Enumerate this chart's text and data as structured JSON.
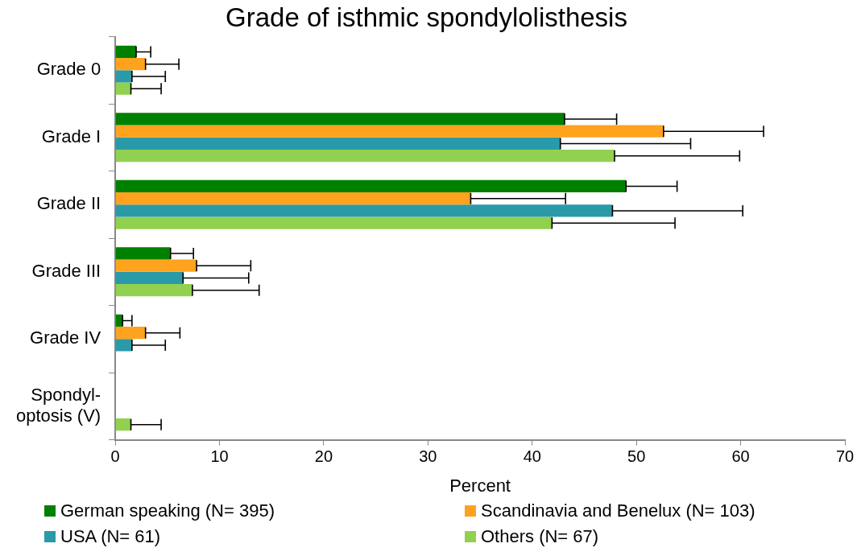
{
  "chart_data": {
    "type": "bar",
    "orientation": "horizontal",
    "title": "Grade of isthmic spondylolisthesis",
    "xlabel": "Percent",
    "categories": [
      "Grade 0",
      "Grade I",
      "Grade II",
      "Grade III",
      "Grade IV",
      "Spondyl-\noptosis (V)"
    ],
    "series": [
      {
        "name": "German speaking (N= 395)",
        "color": "#008000",
        "values": [
          2.0,
          43.1,
          49.0,
          5.3,
          0.7,
          0
        ],
        "errors": [
          [
            2.0,
            3.4
          ],
          [
            43.1,
            48.1
          ],
          [
            49.0,
            53.9
          ],
          [
            5.3,
            7.5
          ],
          [
            0.7,
            1.6
          ],
          null
        ]
      },
      {
        "name": "Scandinavia and Benelux (N= 103)",
        "color": "#ffa31f",
        "values": [
          2.9,
          52.6,
          34.1,
          7.8,
          2.9,
          0
        ],
        "errors": [
          [
            2.9,
            6.1
          ],
          [
            52.6,
            62.2
          ],
          [
            34.1,
            43.2
          ],
          [
            7.8,
            13.0
          ],
          [
            2.9,
            6.2
          ],
          null
        ]
      },
      {
        "name": "USA (N= 61)",
        "color": "#2a9aa8",
        "values": [
          1.6,
          42.7,
          47.7,
          6.5,
          1.6,
          0
        ],
        "errors": [
          [
            1.6,
            4.8
          ],
          [
            42.7,
            55.2
          ],
          [
            47.7,
            60.2
          ],
          [
            6.5,
            12.8
          ],
          [
            1.6,
            4.8
          ],
          null
        ]
      },
      {
        "name": "Others (N= 67)",
        "color": "#92d050",
        "values": [
          1.5,
          47.9,
          41.9,
          7.4,
          0,
          1.5
        ],
        "errors": [
          [
            1.5,
            4.4
          ],
          [
            47.9,
            59.9
          ],
          [
            41.9,
            53.7
          ],
          [
            7.4,
            13.8
          ],
          null,
          [
            1.5,
            4.4
          ]
        ]
      }
    ],
    "xlim": [
      0,
      70
    ],
    "xticks": [
      0,
      10,
      20,
      30,
      40,
      50,
      60,
      70
    ],
    "grid": false,
    "legend": "bottom"
  }
}
